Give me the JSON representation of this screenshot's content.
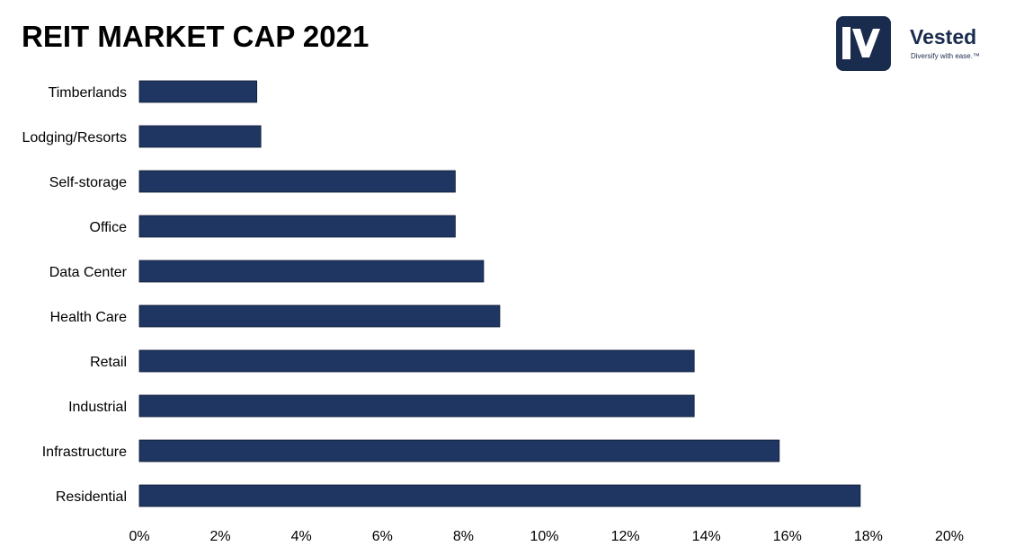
{
  "header": {
    "title": "REIT MARKET CAP 2021"
  },
  "logo": {
    "name": "Vested",
    "tagline": "Diversify with ease.™",
    "icon": "vested-v-icon",
    "bg_color": "#1a2c4e"
  },
  "chart_data": {
    "type": "bar",
    "orientation": "horizontal",
    "title": "REIT MARKET CAP 2021",
    "categories": [
      "Timberlands",
      "Lodging/Resorts",
      "Self-storage",
      "Office",
      "Data Center",
      "Health Care",
      "Retail",
      "Industrial",
      "Infrastructure",
      "Residential"
    ],
    "values": [
      2.9,
      3.0,
      7.8,
      7.8,
      8.5,
      8.9,
      13.7,
      13.7,
      15.8,
      17.8
    ],
    "value_unit": "%",
    "xlim": [
      0,
      20
    ],
    "xticks": [
      "0%",
      "2%",
      "4%",
      "6%",
      "8%",
      "10%",
      "12%",
      "14%",
      "16%",
      "18%",
      "20%"
    ],
    "bar_color": "#1f3662",
    "grid": false,
    "legend": "none"
  }
}
